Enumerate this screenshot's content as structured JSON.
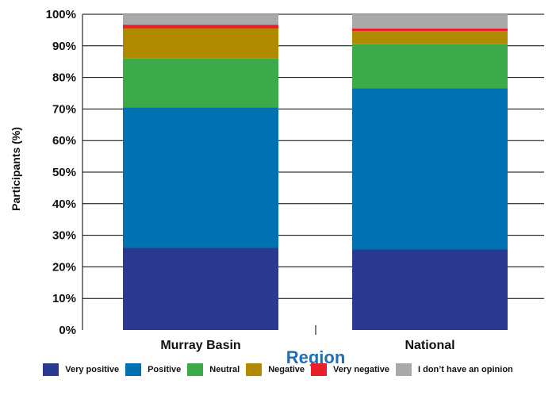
{
  "chart_data": {
    "type": "bar",
    "stacked": true,
    "categories": [
      "Murray Basin",
      "National"
    ],
    "xlabel": "Region",
    "ylabel": "Participants (%)",
    "ylim": [
      0,
      100
    ],
    "y_ticks": [
      "0%",
      "10%",
      "20%",
      "30%",
      "40%",
      "50%",
      "60%",
      "70%",
      "80%",
      "90%",
      "100%"
    ],
    "grid": true,
    "legend_position": "bottom",
    "series": [
      {
        "name": "Very positive",
        "color": "#2b3a8f",
        "values": [
          26,
          25.5
        ]
      },
      {
        "name": "Positive",
        "color": "#0072b2",
        "values": [
          44.5,
          51
        ]
      },
      {
        "name": "Neutral",
        "color": "#3daa4a",
        "values": [
          15.5,
          14
        ]
      },
      {
        "name": "Negative",
        "color": "#b08a00",
        "values": [
          9.5,
          4.2
        ]
      },
      {
        "name": "Very negative",
        "color": "#e8202a",
        "values": [
          1.2,
          0.8
        ]
      },
      {
        "name": "I don’t have an opinion",
        "color": "#a8a9ab",
        "values": [
          3.3,
          4.5
        ]
      }
    ]
  }
}
